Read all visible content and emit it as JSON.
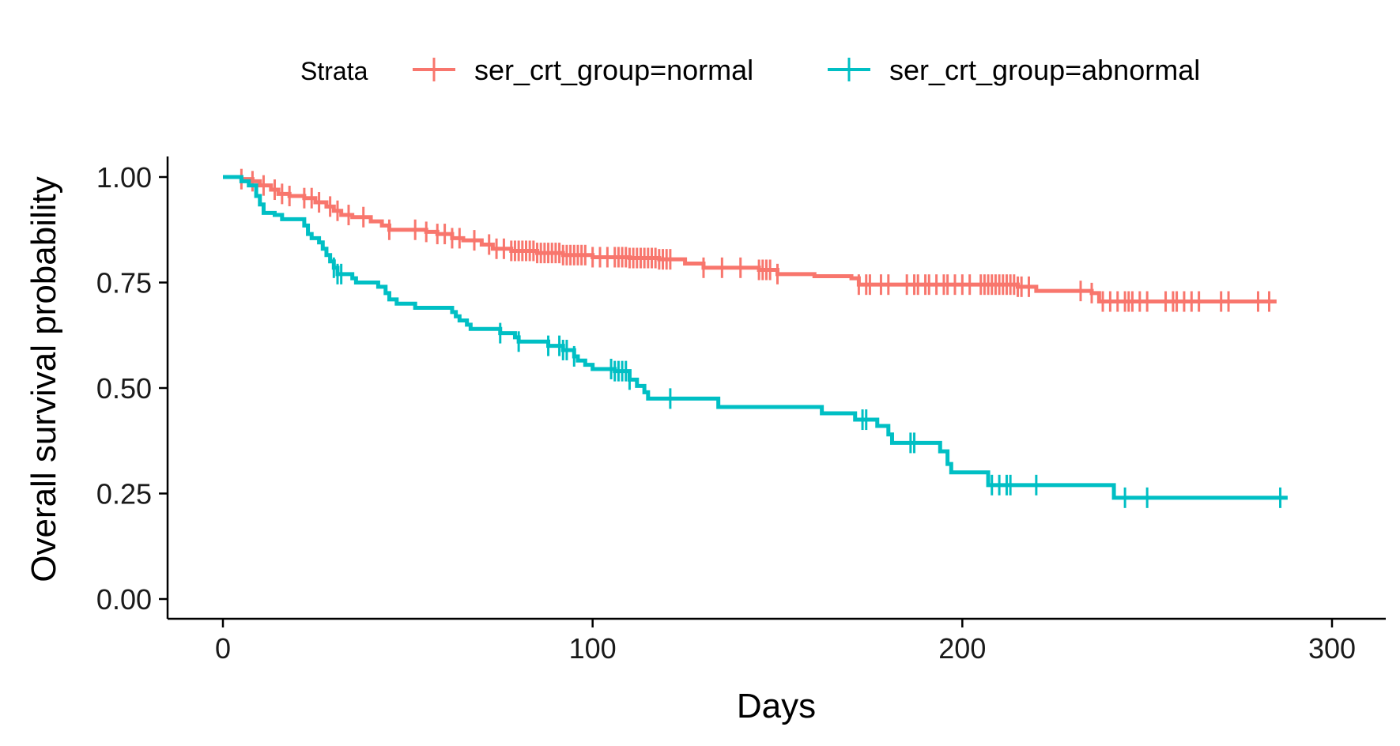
{
  "chart_data": {
    "type": "line",
    "step": true,
    "xlabel": "Days",
    "ylabel": "Overall survival probability",
    "xlim": [
      -15,
      315
    ],
    "ylim": [
      -0.05,
      1.05
    ],
    "x_ticks": [
      0,
      100,
      200,
      300
    ],
    "x_tick_labels": [
      "0",
      "100",
      "200",
      "300"
    ],
    "y_ticks": [
      0.0,
      0.25,
      0.5,
      0.75,
      1.0
    ],
    "y_tick_labels": [
      "0.00",
      "0.25",
      "0.50",
      "0.75",
      "1.00"
    ],
    "grid": false,
    "legend": {
      "title": "Strata",
      "placement": "top"
    },
    "series": [
      {
        "name": "ser_crt_group=normal",
        "color": "#F8766D",
        "points": [
          [
            0,
            1.0
          ],
          [
            5,
            1.0
          ],
          [
            5,
            0.995
          ],
          [
            8,
            0.99
          ],
          [
            10,
            0.98
          ],
          [
            13,
            0.97
          ],
          [
            15,
            0.96
          ],
          [
            18,
            0.955
          ],
          [
            22,
            0.95
          ],
          [
            25,
            0.94
          ],
          [
            28,
            0.93
          ],
          [
            30,
            0.92
          ],
          [
            32,
            0.91
          ],
          [
            35,
            0.905
          ],
          [
            40,
            0.895
          ],
          [
            43,
            0.885
          ],
          [
            45,
            0.875
          ],
          [
            55,
            0.87
          ],
          [
            58,
            0.865
          ],
          [
            62,
            0.855
          ],
          [
            65,
            0.85
          ],
          [
            70,
            0.84
          ],
          [
            73,
            0.83
          ],
          [
            78,
            0.825
          ],
          [
            85,
            0.82
          ],
          [
            92,
            0.815
          ],
          [
            100,
            0.81
          ],
          [
            110,
            0.808
          ],
          [
            118,
            0.805
          ],
          [
            125,
            0.795
          ],
          [
            130,
            0.785
          ],
          [
            145,
            0.78
          ],
          [
            150,
            0.77
          ],
          [
            160,
            0.765
          ],
          [
            170,
            0.76
          ],
          [
            172,
            0.745
          ],
          [
            215,
            0.74
          ],
          [
            220,
            0.73
          ],
          [
            235,
            0.725
          ],
          [
            237,
            0.705
          ],
          [
            285,
            0.705
          ]
        ],
        "censor_x": [
          5,
          8,
          11,
          14,
          16,
          18,
          22,
          24,
          26,
          29,
          31,
          34,
          38,
          45,
          52,
          55,
          58,
          60,
          62,
          64,
          68,
          72,
          74,
          76,
          78,
          79,
          80,
          81,
          82,
          83,
          84,
          85,
          86,
          87,
          88,
          89,
          90,
          91,
          92,
          93,
          94,
          95,
          96,
          97,
          98,
          100,
          102,
          104,
          106,
          107,
          108,
          109,
          110,
          111,
          112,
          113,
          114,
          115,
          116,
          117,
          118,
          119,
          120,
          121,
          130,
          135,
          140,
          145,
          146,
          147,
          148,
          150,
          172,
          174,
          175,
          178,
          180,
          185,
          187,
          188,
          190,
          191,
          193,
          195,
          196,
          198,
          200,
          202,
          205,
          206,
          207,
          208,
          209,
          210,
          211,
          212,
          213,
          214,
          215,
          216,
          218,
          232,
          235,
          238,
          240,
          242,
          244,
          245,
          246,
          248,
          250,
          255,
          257,
          258,
          260,
          262,
          264,
          270,
          272,
          280,
          283
        ]
      },
      {
        "name": "ser_crt_group=abnormal",
        "color": "#00BFC4",
        "points": [
          [
            0,
            1.0
          ],
          [
            5,
            0.99
          ],
          [
            7,
            0.98
          ],
          [
            9,
            0.955
          ],
          [
            10,
            0.935
          ],
          [
            11,
            0.915
          ],
          [
            14,
            0.91
          ],
          [
            16,
            0.9
          ],
          [
            22,
            0.885
          ],
          [
            23,
            0.865
          ],
          [
            24,
            0.855
          ],
          [
            26,
            0.845
          ],
          [
            27,
            0.83
          ],
          [
            28,
            0.815
          ],
          [
            29,
            0.8
          ],
          [
            30,
            0.785
          ],
          [
            31,
            0.77
          ],
          [
            35,
            0.76
          ],
          [
            36,
            0.75
          ],
          [
            42,
            0.74
          ],
          [
            44,
            0.725
          ],
          [
            45,
            0.71
          ],
          [
            47,
            0.7
          ],
          [
            52,
            0.69
          ],
          [
            62,
            0.68
          ],
          [
            63,
            0.67
          ],
          [
            64,
            0.66
          ],
          [
            66,
            0.65
          ],
          [
            67,
            0.64
          ],
          [
            75,
            0.63
          ],
          [
            79,
            0.62
          ],
          [
            80,
            0.61
          ],
          [
            88,
            0.6
          ],
          [
            92,
            0.59
          ],
          [
            95,
            0.575
          ],
          [
            96,
            0.565
          ],
          [
            98,
            0.555
          ],
          [
            100,
            0.545
          ],
          [
            106,
            0.54
          ],
          [
            110,
            0.52
          ],
          [
            112,
            0.505
          ],
          [
            114,
            0.49
          ],
          [
            115,
            0.475
          ],
          [
            134,
            0.455
          ],
          [
            162,
            0.44
          ],
          [
            171,
            0.425
          ],
          [
            177,
            0.41
          ],
          [
            180,
            0.39
          ],
          [
            181,
            0.37
          ],
          [
            194,
            0.35
          ],
          [
            196,
            0.32
          ],
          [
            197,
            0.3
          ],
          [
            207,
            0.27
          ],
          [
            226,
            0.27
          ],
          [
            241,
            0.24
          ],
          [
            288,
            0.24
          ]
        ],
        "censor_x": [
          30,
          31,
          32,
          75,
          80,
          88,
          91,
          92,
          93,
          95,
          105,
          106,
          107,
          108,
          109,
          110,
          121,
          173,
          174,
          186,
          187,
          208,
          210,
          212,
          213,
          220,
          244,
          250,
          286
        ]
      }
    ]
  }
}
